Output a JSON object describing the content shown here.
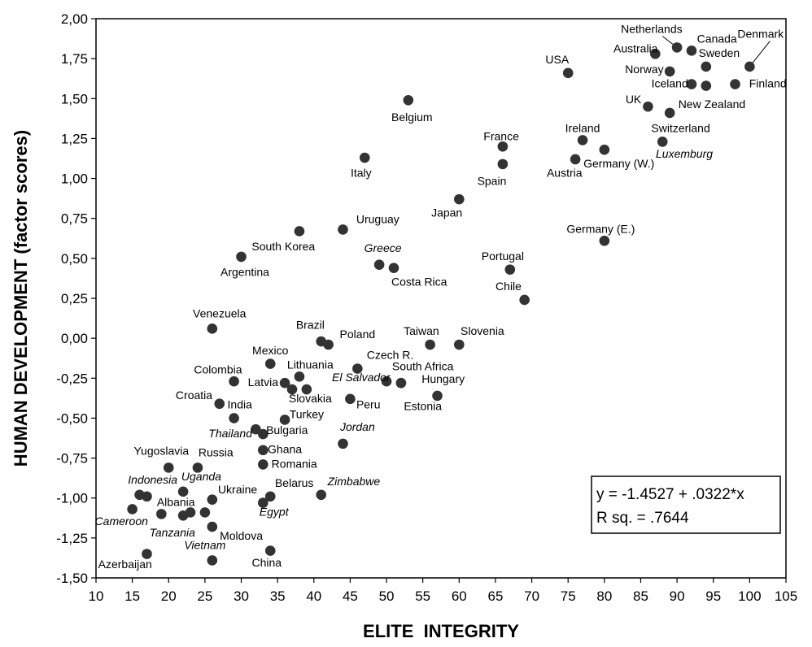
{
  "chart_data": {
    "type": "scatter",
    "xlabel": "ELITE  INTEGRITY",
    "ylabel": "HUMAN DEVELOPMENT (factor scores)",
    "xlim": [
      10,
      105
    ],
    "ylim": [
      -1.5,
      2.0
    ],
    "x_ticks": [
      "10",
      "15",
      "20",
      "25",
      "30",
      "35",
      "40",
      "45",
      "50",
      "55",
      "60",
      "65",
      "70",
      "75",
      "80",
      "85",
      "90",
      "95",
      "100",
      "105"
    ],
    "y_ticks": [
      "2,00",
      "1,75",
      "1,50",
      "1,25",
      "1,00",
      "0,75",
      "0,50",
      "0,25",
      "0,00",
      "-0,25",
      "-0,50",
      "-0,75",
      "-1,00",
      "-1,25",
      "-1,50"
    ],
    "grid": false,
    "regression": {
      "equation": "y = -1.4527 + .0322*x",
      "r_squared": "R sq. = .7644",
      "box_position": "bottom-right"
    },
    "marker_color": "#333333",
    "points": [
      {
        "label": "Denmark",
        "x": 100,
        "y": 1.7,
        "italic": false
      },
      {
        "label": "Netherlands",
        "x": 90,
        "y": 1.82,
        "italic": false
      },
      {
        "label": "Canada",
        "x": 92,
        "y": 1.8,
        "italic": false
      },
      {
        "label": "Australia",
        "x": 87,
        "y": 1.78,
        "italic": false
      },
      {
        "label": "Sweden",
        "x": 94,
        "y": 1.7,
        "italic": false
      },
      {
        "label": "Norway",
        "x": 89,
        "y": 1.67,
        "italic": false
      },
      {
        "label": "USA",
        "x": 75,
        "y": 1.66,
        "italic": false
      },
      {
        "label": "Iceland",
        "x": 92,
        "y": 1.59,
        "italic": false
      },
      {
        "label": "New Zealand",
        "x": 94,
        "y": 1.58,
        "italic": false
      },
      {
        "label": "Finland",
        "x": 98,
        "y": 1.59,
        "italic": false
      },
      {
        "label": "UK",
        "x": 86,
        "y": 1.45,
        "italic": false
      },
      {
        "label": "Switzerland",
        "x": 89,
        "y": 1.41,
        "italic": false
      },
      {
        "label": "Belgium",
        "x": 53,
        "y": 1.49,
        "italic": false
      },
      {
        "label": "Luxemburg",
        "x": 88,
        "y": 1.23,
        "italic": true
      },
      {
        "label": "Ireland",
        "x": 77,
        "y": 1.24,
        "italic": false
      },
      {
        "label": "Germany (W.)",
        "x": 80,
        "y": 1.18,
        "italic": false
      },
      {
        "label": "France",
        "x": 66,
        "y": 1.2,
        "italic": false
      },
      {
        "label": "Austria",
        "x": 76,
        "y": 1.12,
        "italic": false
      },
      {
        "label": "Italy",
        "x": 47,
        "y": 1.13,
        "italic": false
      },
      {
        "label": "Spain",
        "x": 66,
        "y": 1.09,
        "italic": false
      },
      {
        "label": "Japan",
        "x": 60,
        "y": 0.87,
        "italic": false
      },
      {
        "label": "Uruguay",
        "x": 44,
        "y": 0.68,
        "italic": false
      },
      {
        "label": "South Korea",
        "x": 38,
        "y": 0.67,
        "italic": false
      },
      {
        "label": "Germany (E.)",
        "x": 80,
        "y": 0.61,
        "italic": false
      },
      {
        "label": "Argentina",
        "x": 30,
        "y": 0.51,
        "italic": false
      },
      {
        "label": "Greece",
        "x": 49,
        "y": 0.46,
        "italic": true
      },
      {
        "label": "Costa Rica",
        "x": 51,
        "y": 0.44,
        "italic": false
      },
      {
        "label": "Portugal",
        "x": 67,
        "y": 0.43,
        "italic": false
      },
      {
        "label": "Chile",
        "x": 69,
        "y": 0.24,
        "italic": false
      },
      {
        "label": "Venezuela",
        "x": 26,
        "y": 0.06,
        "italic": false
      },
      {
        "label": "Brazil",
        "x": 41,
        "y": -0.02,
        "italic": false
      },
      {
        "label": "Poland",
        "x": 42,
        "y": -0.04,
        "italic": false
      },
      {
        "label": "Taiwan",
        "x": 56,
        "y": -0.04,
        "italic": false
      },
      {
        "label": "Slovenia",
        "x": 60,
        "y": -0.04,
        "italic": false
      },
      {
        "label": "Mexico",
        "x": 34,
        "y": -0.16,
        "italic": false
      },
      {
        "label": "Czech R.",
        "x": 46,
        "y": -0.19,
        "italic": false
      },
      {
        "label": "Lithuania",
        "x": 38,
        "y": -0.24,
        "italic": false
      },
      {
        "label": "Colombia",
        "x": 29,
        "y": -0.27,
        "italic": false
      },
      {
        "label": "El Salvador",
        "x": 50,
        "y": -0.27,
        "italic": true
      },
      {
        "label": "South Africa",
        "x": 52,
        "y": -0.28,
        "italic": false
      },
      {
        "label": "Latvia",
        "x": 36,
        "y": -0.28,
        "italic": false
      },
      {
        "label": "Hungary",
        "x": 52,
        "y": -0.28,
        "italic": false
      },
      {
        "label": "Slovakia",
        "x": 37,
        "y": -0.32,
        "italic": false
      },
      {
        "label": "Slovakia-2",
        "x": 39,
        "y": -0.32,
        "italic": false
      },
      {
        "label": "Estonia",
        "x": 57,
        "y": -0.36,
        "italic": false
      },
      {
        "label": "Peru",
        "x": 45,
        "y": -0.38,
        "italic": false
      },
      {
        "label": "Croatia",
        "x": 27,
        "y": -0.41,
        "italic": false
      },
      {
        "label": "India",
        "x": 29,
        "y": -0.5,
        "italic": false
      },
      {
        "label": "Turkey",
        "x": 36,
        "y": -0.51,
        "italic": false
      },
      {
        "label": "Thailand",
        "x": 32,
        "y": -0.57,
        "italic": true
      },
      {
        "label": "Bulgaria",
        "x": 33,
        "y": -0.6,
        "italic": false
      },
      {
        "label": "Jordan",
        "x": 44,
        "y": -0.66,
        "italic": true
      },
      {
        "label": "Ghana",
        "x": 33,
        "y": -0.7,
        "italic": false
      },
      {
        "label": "Romania",
        "x": 33,
        "y": -0.79,
        "italic": false
      },
      {
        "label": "Yugoslavia",
        "x": 20,
        "y": -0.81,
        "italic": false
      },
      {
        "label": "Russia",
        "x": 24,
        "y": -0.81,
        "italic": false
      },
      {
        "label": "Indonesia",
        "x": 16,
        "y": -0.98,
        "italic": true
      },
      {
        "label": "Indonesia-2",
        "x": 17,
        "y": -0.99,
        "italic": false
      },
      {
        "label": "Uganda",
        "x": 22,
        "y": -0.96,
        "italic": true
      },
      {
        "label": "Ukraine",
        "x": 26,
        "y": -1.01,
        "italic": false
      },
      {
        "label": "Belarus",
        "x": 34,
        "y": -0.99,
        "italic": false
      },
      {
        "label": "Zimbabwe",
        "x": 41,
        "y": -0.98,
        "italic": true
      },
      {
        "label": "Egypt",
        "x": 33,
        "y": -1.03,
        "italic": true
      },
      {
        "label": "Cameroon",
        "x": 15,
        "y": -1.07,
        "italic": true
      },
      {
        "label": "Albania",
        "x": 19,
        "y": -1.1,
        "italic": false
      },
      {
        "label": "Albania-2",
        "x": 22,
        "y": -1.11,
        "italic": false
      },
      {
        "label": "Albania-3",
        "x": 23,
        "y": -1.09,
        "italic": false
      },
      {
        "label": "Tanzania",
        "x": 25,
        "y": -1.09,
        "italic": true
      },
      {
        "label": "Moldova",
        "x": 26,
        "y": -1.18,
        "italic": false
      },
      {
        "label": "Vietnam",
        "x": 26,
        "y": -1.39,
        "italic": true
      },
      {
        "label": "China",
        "x": 34,
        "y": -1.33,
        "italic": false
      },
      {
        "label": "Azerbaijan",
        "x": 17,
        "y": -1.35,
        "italic": false
      }
    ],
    "text_labels": [
      {
        "text": "Denmark",
        "x": 101.5,
        "y": 1.88,
        "italic": false
      },
      {
        "text": "Netherlands",
        "x": 86.5,
        "y": 1.91,
        "italic": false
      },
      {
        "text": "Canada",
        "x": 95.5,
        "y": 1.85,
        "italic": false
      },
      {
        "text": "Australia",
        "x": 84.3,
        "y": 1.79,
        "italic": false
      },
      {
        "text": "Sweden",
        "x": 95.8,
        "y": 1.76,
        "italic": false
      },
      {
        "text": "Norway",
        "x": 85.5,
        "y": 1.66,
        "italic": false
      },
      {
        "text": "USA",
        "x": 73.5,
        "y": 1.72,
        "italic": false
      },
      {
        "text": "Iceland",
        "x": 89.0,
        "y": 1.57,
        "italic": false
      },
      {
        "text": "Finland",
        "x": 102.5,
        "y": 1.57,
        "italic": false
      },
      {
        "text": "New Zealand",
        "x": 94.8,
        "y": 1.44,
        "italic": false
      },
      {
        "text": "UK",
        "x": 84.0,
        "y": 1.47,
        "italic": false
      },
      {
        "text": "Switzerland",
        "x": 90.5,
        "y": 1.29,
        "italic": false
      },
      {
        "text": "Belgium",
        "x": 53.5,
        "y": 1.36,
        "italic": false
      },
      {
        "text": "Luxemburg",
        "x": 91.0,
        "y": 1.13,
        "italic": true
      },
      {
        "text": "Ireland",
        "x": 77.0,
        "y": 1.29,
        "italic": false
      },
      {
        "text": "Germany (W.)",
        "x": 82.0,
        "y": 1.07,
        "italic": false
      },
      {
        "text": "France",
        "x": 65.8,
        "y": 1.24,
        "italic": false
      },
      {
        "text": "Austria",
        "x": 74.5,
        "y": 1.01,
        "italic": false
      },
      {
        "text": "Italy",
        "x": 46.5,
        "y": 1.01,
        "italic": false
      },
      {
        "text": "Spain",
        "x": 64.5,
        "y": 0.96,
        "italic": false
      },
      {
        "text": "Japan",
        "x": 58.3,
        "y": 0.76,
        "italic": false
      },
      {
        "text": "Uruguay",
        "x": 48.8,
        "y": 0.72,
        "italic": false
      },
      {
        "text": "South Korea",
        "x": 35.8,
        "y": 0.55,
        "italic": false
      },
      {
        "text": "Germany (E.)",
        "x": 79.5,
        "y": 0.66,
        "italic": false
      },
      {
        "text": "Argentina",
        "x": 30.5,
        "y": 0.39,
        "italic": false
      },
      {
        "text": "Greece",
        "x": 49.5,
        "y": 0.54,
        "italic": true
      },
      {
        "text": "Costa Rica",
        "x": 54.5,
        "y": 0.33,
        "italic": false
      },
      {
        "text": "Portugal",
        "x": 66.0,
        "y": 0.49,
        "italic": false
      },
      {
        "text": "Chile",
        "x": 66.8,
        "y": 0.3,
        "italic": false
      },
      {
        "text": "Venezuela",
        "x": 27.0,
        "y": 0.13,
        "italic": false
      },
      {
        "text": "Brazil",
        "x": 39.5,
        "y": 0.06,
        "italic": false
      },
      {
        "text": "Poland",
        "x": 46.0,
        "y": 0.0,
        "italic": false
      },
      {
        "text": "Taiwan",
        "x": 54.8,
        "y": 0.02,
        "italic": false
      },
      {
        "text": "Slovenia",
        "x": 63.2,
        "y": 0.02,
        "italic": false
      },
      {
        "text": "Mexico",
        "x": 34.0,
        "y": -0.1,
        "italic": false
      },
      {
        "text": "Czech R.",
        "x": 50.5,
        "y": -0.13,
        "italic": false
      },
      {
        "text": "Lithuania",
        "x": 39.5,
        "y": -0.19,
        "italic": false
      },
      {
        "text": "Colombia",
        "x": 26.8,
        "y": -0.22,
        "italic": false
      },
      {
        "text": "El Salvador",
        "x": 46.5,
        "y": -0.27,
        "italic": true
      },
      {
        "text": "South Africa",
        "x": 55.0,
        "y": -0.2,
        "italic": false
      },
      {
        "text": "Latvia",
        "x": 33.0,
        "y": -0.3,
        "italic": false
      },
      {
        "text": "Hungary",
        "x": 57.8,
        "y": -0.28,
        "italic": false
      },
      {
        "text": "Slovakia",
        "x": 39.5,
        "y": -0.4,
        "italic": false
      },
      {
        "text": "Estonia",
        "x": 55.0,
        "y": -0.45,
        "italic": false
      },
      {
        "text": "Peru",
        "x": 47.5,
        "y": -0.44,
        "italic": false
      },
      {
        "text": "Croatia",
        "x": 23.5,
        "y": -0.38,
        "italic": false
      },
      {
        "text": "India",
        "x": 29.8,
        "y": -0.44,
        "italic": false
      },
      {
        "text": "Turkey",
        "x": 39.0,
        "y": -0.5,
        "italic": false
      },
      {
        "text": "Thailand",
        "x": 28.5,
        "y": -0.62,
        "italic": true
      },
      {
        "text": "Bulgaria",
        "x": 36.3,
        "y": -0.6,
        "italic": false
      },
      {
        "text": "Jordan",
        "x": 46.0,
        "y": -0.58,
        "italic": true
      },
      {
        "text": "Ghana",
        "x": 36.0,
        "y": -0.72,
        "italic": false
      },
      {
        "text": "Romania",
        "x": 37.3,
        "y": -0.81,
        "italic": false
      },
      {
        "text": "Yugoslavia",
        "x": 19.0,
        "y": -0.73,
        "italic": false
      },
      {
        "text": "Russia",
        "x": 26.5,
        "y": -0.74,
        "italic": false
      },
      {
        "text": "Indonesia",
        "x": 17.8,
        "y": -0.91,
        "italic": true
      },
      {
        "text": "Uganda",
        "x": 24.5,
        "y": -0.89,
        "italic": true
      },
      {
        "text": "Ukraine",
        "x": 29.5,
        "y": -0.97,
        "italic": false
      },
      {
        "text": "Belarus",
        "x": 37.3,
        "y": -0.93,
        "italic": false
      },
      {
        "text": "Zimbabwe",
        "x": 45.5,
        "y": -0.92,
        "italic": true
      },
      {
        "text": "Egypt",
        "x": 34.5,
        "y": -1.11,
        "italic": true
      },
      {
        "text": "Cameroon",
        "x": 13.5,
        "y": -1.17,
        "italic": true
      },
      {
        "text": "Albania",
        "x": 21.0,
        "y": -1.05,
        "italic": false
      },
      {
        "text": "Tanzania",
        "x": 20.5,
        "y": -1.24,
        "italic": true
      },
      {
        "text": "Moldova",
        "x": 30.0,
        "y": -1.26,
        "italic": false
      },
      {
        "text": "Vietnam",
        "x": 25.0,
        "y": -1.32,
        "italic": true
      },
      {
        "text": "China",
        "x": 33.5,
        "y": -1.43,
        "italic": false
      },
      {
        "text": "Azerbaijan",
        "x": 14.0,
        "y": -1.44,
        "italic": false
      }
    ],
    "leader_lines": [
      {
        "from_label": "Netherlands",
        "x1": 88.0,
        "y1": 1.89,
        "x2": 90.0,
        "y2": 1.82
      },
      {
        "from_label": "Denmark",
        "x1": 102.8,
        "y1": 1.86,
        "x2": 100.0,
        "y2": 1.7
      }
    ]
  }
}
